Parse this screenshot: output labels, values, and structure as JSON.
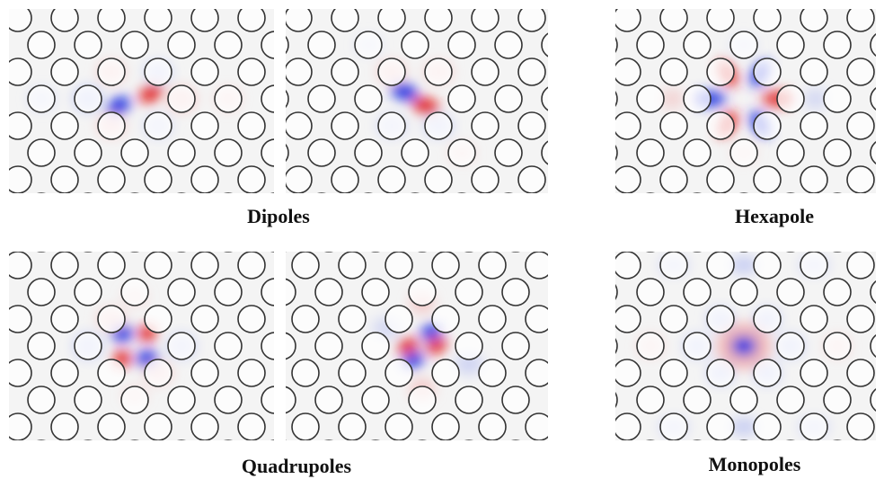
{
  "panels": {
    "dipoles": {
      "label": "Dipoles"
    },
    "hexapole": {
      "label": "Hexapole"
    },
    "quadrupoles": {
      "label": "Quadrupoles"
    },
    "monopoles": {
      "label": "Monopoles"
    }
  }
}
